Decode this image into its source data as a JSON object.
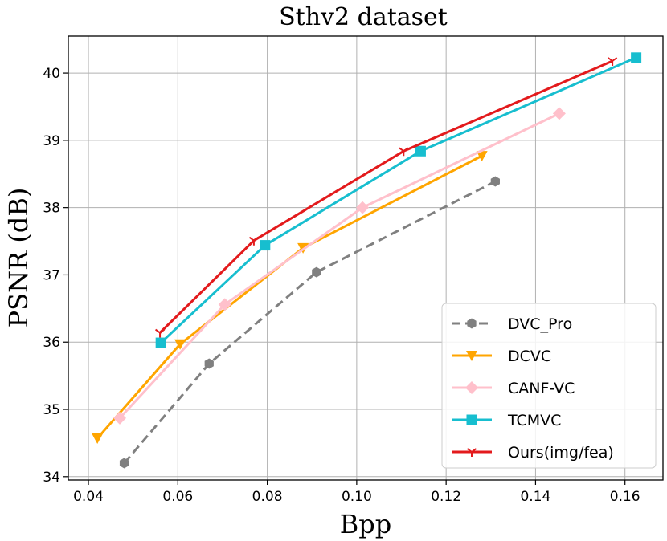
{
  "chart_data": {
    "type": "line",
    "title": "Sthv2 dataset",
    "xlabel": "Bpp",
    "ylabel": "PSNR (dB)",
    "xlim": [
      0.0355,
      0.1685
    ],
    "ylim": [
      33.95,
      40.55
    ],
    "xticks": [
      0.04,
      0.06,
      0.08,
      0.1,
      0.12,
      0.14,
      0.16
    ],
    "xtick_labels": [
      "0.04",
      "0.06",
      "0.08",
      "0.10",
      "0.12",
      "0.14",
      "0.16"
    ],
    "yticks": [
      34,
      35,
      36,
      37,
      38,
      39,
      40
    ],
    "ytick_labels": [
      "34",
      "35",
      "36",
      "37",
      "38",
      "39",
      "40"
    ],
    "grid": true,
    "legend_position": "lower-right",
    "series": [
      {
        "name": "DVC_Pro",
        "color": "#808080",
        "marker": "hexagon",
        "dash": true,
        "x": [
          0.048,
          0.067,
          0.091,
          0.131
        ],
        "y": [
          34.2,
          35.68,
          37.04,
          38.39
        ]
      },
      {
        "name": "DCVC",
        "color": "#FFA500",
        "marker": "triangle-down",
        "dash": false,
        "x": [
          0.042,
          0.0605,
          0.088,
          0.128
        ],
        "y": [
          34.57,
          35.97,
          37.4,
          38.77
        ]
      },
      {
        "name": "CANF-VC",
        "color": "#FFC0CB",
        "marker": "diamond",
        "dash": false,
        "x": [
          0.047,
          0.0705,
          0.1013,
          0.1453
        ],
        "y": [
          34.87,
          36.56,
          38.0,
          39.4
        ]
      },
      {
        "name": "TCMVC",
        "color": "#17BECF",
        "marker": "square",
        "dash": false,
        "x": [
          0.0562,
          0.0795,
          0.1143,
          0.1625
        ],
        "y": [
          35.99,
          37.44,
          38.84,
          40.23
        ]
      },
      {
        "name": "Ours(img/fea)",
        "color": "#E31A1C",
        "marker": "tri-down",
        "dash": false,
        "x": [
          0.056,
          0.077,
          0.1105,
          0.1572
        ],
        "y": [
          36.14,
          37.51,
          38.84,
          40.18
        ]
      }
    ]
  }
}
